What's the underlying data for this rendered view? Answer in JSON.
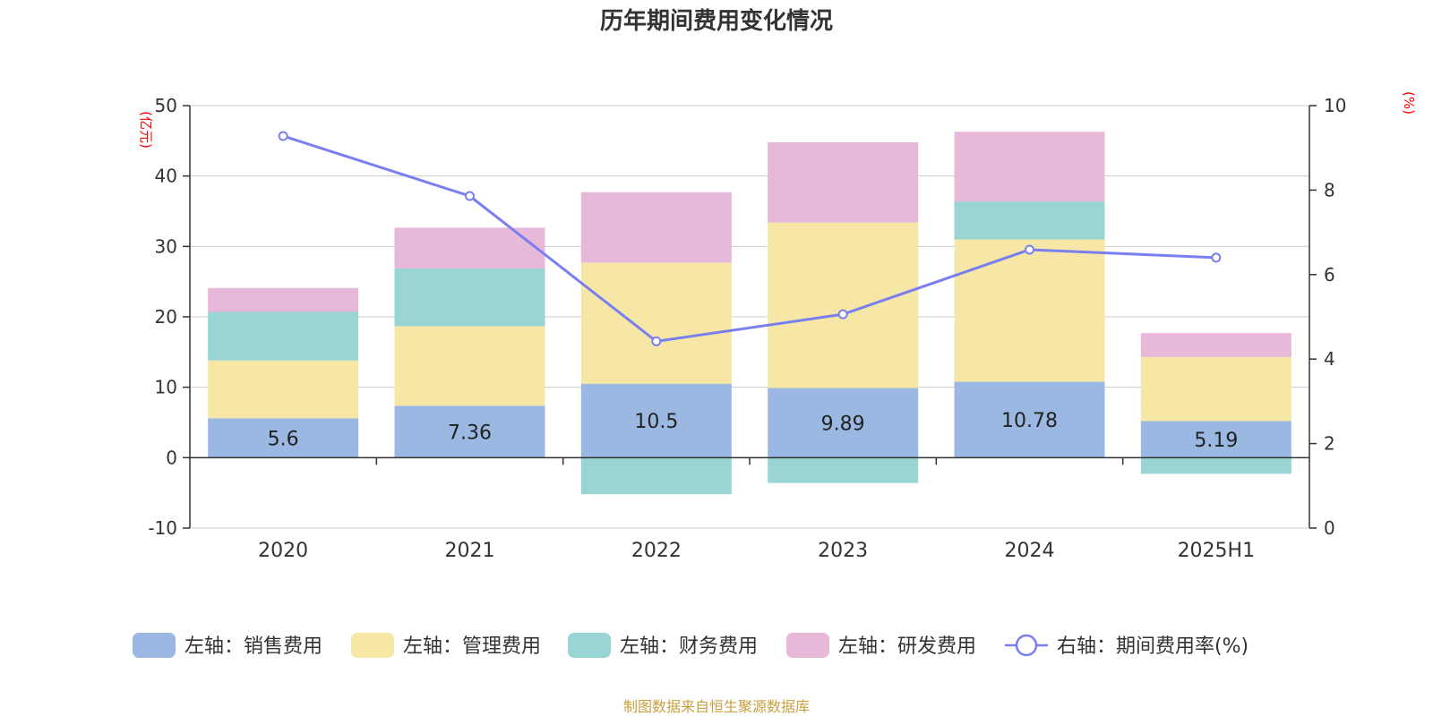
{
  "chart_data": {
    "type": "bar",
    "title": "历年期间费用变化情况",
    "categories": [
      "2020",
      "2021",
      "2022",
      "2023",
      "2024",
      "2025H1"
    ],
    "left_axis": {
      "unit_label": "(亿元)",
      "ylim": [
        -10,
        50
      ],
      "ticks": [
        50,
        40,
        30,
        20,
        10,
        0,
        -10
      ]
    },
    "right_axis": {
      "unit_label": "(%)",
      "ylim": [
        0,
        10
      ],
      "ticks": [
        10,
        8,
        6,
        4,
        2,
        0
      ]
    },
    "series": [
      {
        "name": "左轴：销售费用",
        "axis": "left",
        "type": "bar",
        "color": "#9bb8e2",
        "values": [
          5.6,
          7.36,
          10.5,
          9.89,
          10.78,
          5.19
        ],
        "data_labels": [
          "5.6",
          "7.36",
          "10.5",
          "9.89",
          "10.78",
          "5.19"
        ]
      },
      {
        "name": "左轴：管理费用",
        "axis": "left",
        "type": "bar",
        "color": "#f7e7a6",
        "values": [
          8.2,
          11.3,
          17.2,
          23.5,
          20.2,
          9.1
        ]
      },
      {
        "name": "左轴：财务费用",
        "axis": "left",
        "type": "bar",
        "color": "#98d5d3",
        "values": [
          6.9,
          8.2,
          -5.2,
          -3.6,
          5.4,
          -2.3
        ]
      },
      {
        "name": "左轴：研发费用",
        "axis": "left",
        "type": "bar",
        "color": "#e8b8d9",
        "values": [
          3.4,
          5.8,
          10.0,
          11.4,
          9.9,
          3.4
        ]
      },
      {
        "name": "右轴：期间费用率(%)",
        "axis": "right",
        "type": "line",
        "color": "#7a7ff0",
        "values": [
          9.28,
          7.86,
          4.42,
          5.06,
          6.59,
          6.4
        ]
      }
    ],
    "legend_position": "bottom",
    "grid": true
  },
  "source_note": "制图数据来自恒生聚源数据库"
}
